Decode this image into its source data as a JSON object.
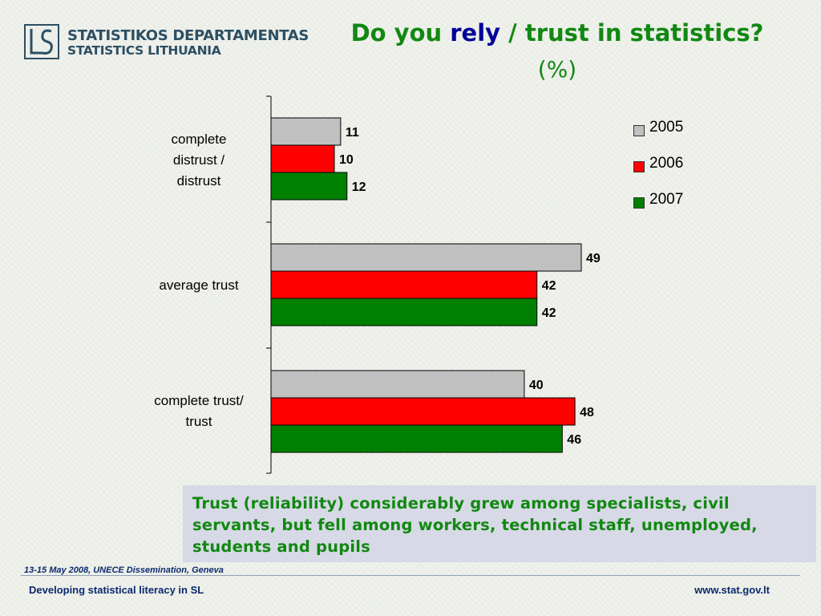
{
  "header": {
    "logo_line1": "STATISTIKOS DEPARTAMENTAS",
    "logo_line2": "STATISTICS LITHUANIA",
    "title_part1": "Do you ",
    "title_rely": "rely",
    "title_part2": " / trust in statistics?",
    "subtitle": "(%)",
    "title_color": "#118811",
    "rely_color": "#000099"
  },
  "chart_data": {
    "type": "bar",
    "orientation": "horizontal",
    "title": "Do you rely / trust in statistics?",
    "subtitle": "(%)",
    "categories": [
      "complete distrust / distrust",
      "average trust",
      "complete trust/ trust"
    ],
    "category_lines": [
      [
        "complete",
        "distrust /",
        "distrust"
      ],
      [
        "average trust"
      ],
      [
        "complete trust/",
        "trust"
      ]
    ],
    "series": [
      {
        "name": "2005",
        "color": "#c0c0c0",
        "values": [
          11,
          49,
          40
        ]
      },
      {
        "name": "2006",
        "color": "#ff0000",
        "values": [
          10,
          42,
          48
        ]
      },
      {
        "name": "2007",
        "color": "#008000",
        "values": [
          12,
          42,
          46
        ]
      }
    ],
    "xlim": [
      0,
      60
    ],
    "data_labels": true,
    "grid": false,
    "legend_position": "top-right"
  },
  "note": {
    "text": "Trust (reliability) considerably grew among specialists, civil servants, but fell among workers, technical staff, unemployed, students and pupils"
  },
  "footer": {
    "event": "13-15 May 2008, UNECE Dissemination, Geneva",
    "left": "Developing statistical literacy in SL",
    "right": "www.stat.gov.lt"
  }
}
